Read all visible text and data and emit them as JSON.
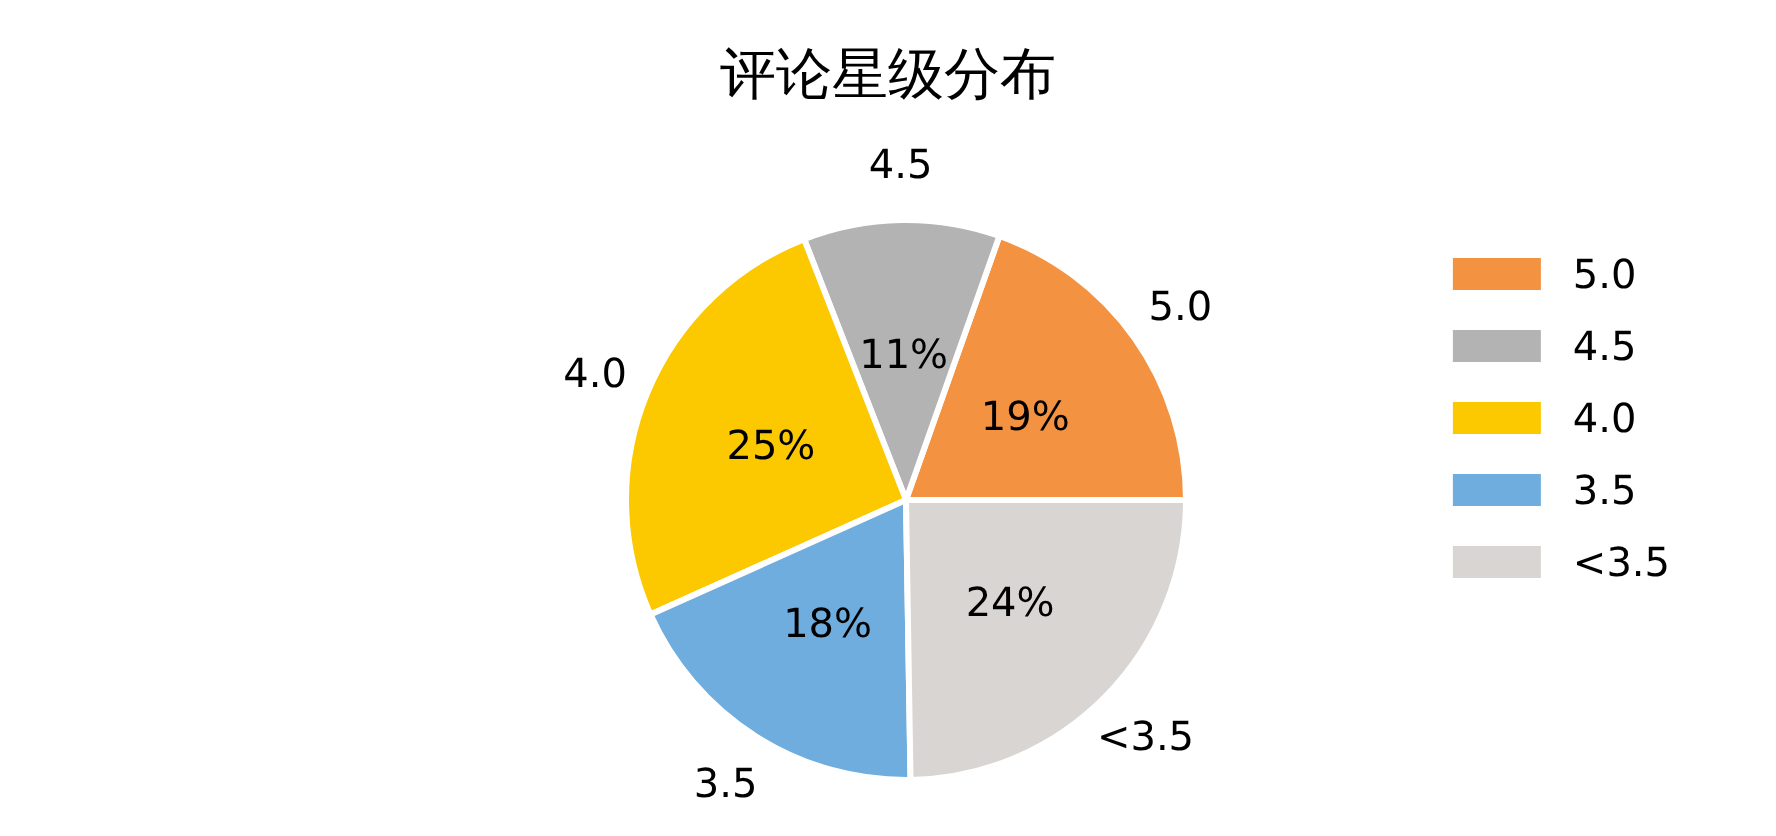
{
  "chart_data": {
    "type": "pie",
    "title": "评论星级分布",
    "categories": [
      "5.0",
      "4.5",
      "4.0",
      "3.5",
      "<3.5"
    ],
    "values": [
      19,
      11,
      25,
      18,
      24
    ],
    "value_labels": [
      "19%",
      "11%",
      "25%",
      "18%",
      "24%"
    ],
    "colors": [
      "#f39240",
      "#b3b3b3",
      "#fcc800",
      "#6eaddd",
      "#d9d5d2"
    ],
    "legend": "right"
  }
}
